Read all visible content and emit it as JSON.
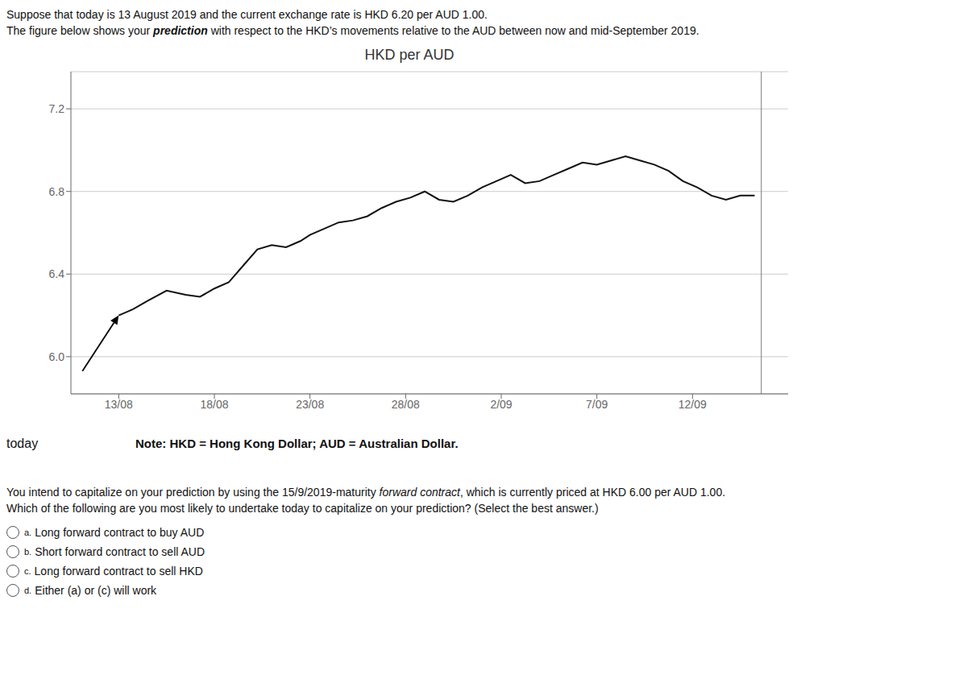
{
  "chart_data": {
    "type": "line",
    "title": "HKD per AUD",
    "header": {
      "line1": "Suppose that today is 13 August 2019 and the current exchange rate is HKD 6.20 per AUD 1.00.",
      "line2": [
        "The figure below shows your ",
        "prediction",
        " with respect to the HKD’s movements relative to the AUD between now and mid-September 2019."
      ]
    },
    "x": [
      0.0,
      0.15,
      0.3,
      0.5,
      0.7,
      0.85,
      1.0,
      1.15,
      1.3,
      1.45,
      1.6,
      1.75,
      1.9,
      2.0,
      2.15,
      2.3,
      2.45,
      2.6,
      2.75,
      2.9,
      3.05,
      3.2,
      3.35,
      3.5,
      3.65,
      3.8,
      3.95,
      4.1,
      4.25,
      4.4,
      4.55,
      4.7,
      4.85,
      5.0,
      5.15,
      5.3,
      5.45,
      5.6,
      5.75,
      5.9,
      6.05,
      6.2,
      6.35,
      6.5,
      6.65
    ],
    "values": [
      6.2,
      6.23,
      6.27,
      6.32,
      6.3,
      6.29,
      6.33,
      6.36,
      6.44,
      6.52,
      6.54,
      6.53,
      6.56,
      6.59,
      6.62,
      6.65,
      6.66,
      6.68,
      6.72,
      6.75,
      6.77,
      6.8,
      6.76,
      6.75,
      6.78,
      6.82,
      6.85,
      6.88,
      6.84,
      6.85,
      6.88,
      6.91,
      6.94,
      6.93,
      6.95,
      6.97,
      6.95,
      6.93,
      6.9,
      6.85,
      6.82,
      6.78,
      6.76,
      6.78,
      6.78
    ],
    "color": "#111111",
    "xlim": [
      -0.5,
      7.0
    ],
    "xticks": [
      {
        "value": 0,
        "label": "13/08"
      },
      {
        "value": 1,
        "label": "18/08"
      },
      {
        "value": 2,
        "label": "23/08"
      },
      {
        "value": 3,
        "label": "28/08"
      },
      {
        "value": 4,
        "label": "2/09"
      },
      {
        "value": 5,
        "label": "7/09"
      },
      {
        "value": 6,
        "label": "12/09"
      }
    ],
    "ylim": [
      5.82,
      7.38
    ],
    "yticks": [
      {
        "value": 6.0,
        "label": "6.0"
      },
      6.4,
      6.8,
      7.2
    ],
    "grid": "y",
    "reference_lines": [
      {
        "x": 6.72
      }
    ],
    "arrow": {
      "from": [
        -0.38,
        5.93
      ],
      "to": [
        0.0,
        6.2
      ]
    },
    "annotations": [
      "today"
    ],
    "note": "Note: HKD = Hong Kong Dollar; AUD = Australian Dollar.",
    "question": {
      "line1": [
        "You intend to capitalize on your prediction by using the 15/9/2019-maturity ",
        "forward contract",
        ", which is currently priced at HKD 6.00 per AUD 1.00."
      ],
      "line2": "Which of the following are you most likely to undertake today to capitalize on your prediction? (Select the best answer.)"
    },
    "options": [
      {
        "label": "a.",
        "text": "Long forward contract to buy AUD"
      },
      {
        "label": "b.",
        "text": "Short forward contract to sell AUD"
      },
      {
        "label": "c.",
        "text": "Long forward contract to sell HKD"
      },
      {
        "label": "d.",
        "text": "Either (a) or (c) will work"
      }
    ]
  }
}
